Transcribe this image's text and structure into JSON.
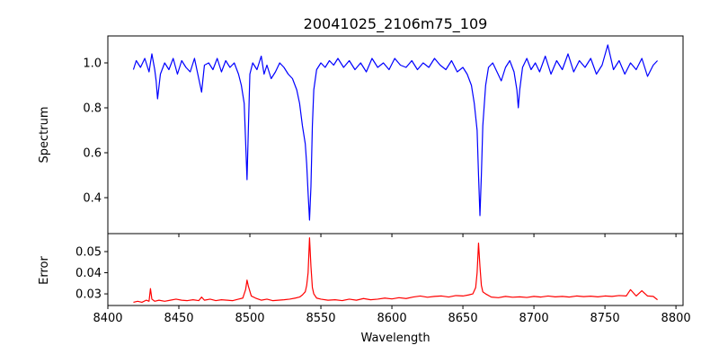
{
  "title": "20041025_2106m75_109",
  "chart_data": [
    {
      "type": "line",
      "panel": "spectrum",
      "ylabel": "Spectrum",
      "xlabel": "",
      "xlim": [
        8400,
        8805
      ],
      "ylim": [
        0.24,
        1.12
      ],
      "xticks": [
        8400,
        8450,
        8500,
        8550,
        8600,
        8650,
        8700,
        8750,
        8800
      ],
      "yticks": [
        0.4,
        0.6,
        0.8,
        1.0
      ],
      "ytick_labels": [
        "0.4",
        "0.6",
        "0.8",
        "1.0"
      ],
      "grid": false,
      "color": "#0000ff",
      "series": [
        {
          "x": [
            8418,
            8420,
            8423,
            8426,
            8429,
            8431,
            8433,
            8434,
            8435,
            8437,
            8440,
            8443,
            8446,
            8449,
            8452,
            8455,
            8458,
            8461,
            8464,
            8466,
            8468,
            8471,
            8474,
            8477,
            8480,
            8483,
            8486,
            8489,
            8492,
            8494,
            8496,
            8497,
            8498,
            8499,
            8500,
            8502,
            8505,
            8508,
            8510,
            8512,
            8515,
            8518,
            8521,
            8524,
            8527,
            8530,
            8533,
            8535,
            8537,
            8539,
            8540,
            8541,
            8542,
            8543,
            8544,
            8545,
            8547,
            8550,
            8553,
            8556,
            8559,
            8562,
            8566,
            8570,
            8574,
            8578,
            8582,
            8586,
            8590,
            8594,
            8598,
            8602,
            8606,
            8610,
            8614,
            8618,
            8622,
            8626,
            8630,
            8634,
            8638,
            8642,
            8646,
            8650,
            8653,
            8656,
            8658,
            8660,
            8661,
            8662,
            8663,
            8664,
            8666,
            8668,
            8671,
            8674,
            8677,
            8680,
            8683,
            8686,
            8688,
            8689,
            8690,
            8692,
            8695,
            8698,
            8701,
            8704,
            8708,
            8712,
            8716,
            8720,
            8724,
            8728,
            8732,
            8736,
            8740,
            8744,
            8748,
            8752,
            8756,
            8760,
            8764,
            8768,
            8772,
            8776,
            8780,
            8784,
            8787
          ],
          "y": [
            0.97,
            1.01,
            0.98,
            1.02,
            0.96,
            1.04,
            0.97,
            0.92,
            0.84,
            0.95,
            1.0,
            0.97,
            1.02,
            0.95,
            1.01,
            0.98,
            0.96,
            1.02,
            0.93,
            0.87,
            0.99,
            1.0,
            0.97,
            1.02,
            0.96,
            1.01,
            0.98,
            1.0,
            0.95,
            0.9,
            0.82,
            0.65,
            0.48,
            0.72,
            0.95,
            1.0,
            0.97,
            1.03,
            0.95,
            0.99,
            0.93,
            0.96,
            1.0,
            0.98,
            0.95,
            0.93,
            0.88,
            0.82,
            0.72,
            0.64,
            0.55,
            0.42,
            0.3,
            0.45,
            0.72,
            0.88,
            0.97,
            1.0,
            0.98,
            1.01,
            0.99,
            1.02,
            0.98,
            1.01,
            0.97,
            1.0,
            0.96,
            1.02,
            0.98,
            1.0,
            0.97,
            1.02,
            0.99,
            0.98,
            1.01,
            0.97,
            1.0,
            0.98,
            1.02,
            0.99,
            0.97,
            1.01,
            0.96,
            0.98,
            0.95,
            0.9,
            0.82,
            0.7,
            0.5,
            0.32,
            0.5,
            0.72,
            0.9,
            0.98,
            1.0,
            0.96,
            0.92,
            0.98,
            1.01,
            0.96,
            0.88,
            0.8,
            0.88,
            0.98,
            1.02,
            0.97,
            1.0,
            0.96,
            1.03,
            0.95,
            1.01,
            0.97,
            1.04,
            0.96,
            1.01,
            0.98,
            1.02,
            0.95,
            0.99,
            1.08,
            0.97,
            1.01,
            0.95,
            1.0,
            0.97,
            1.02,
            0.94,
            0.99,
            1.01
          ]
        }
      ]
    },
    {
      "type": "line",
      "panel": "error",
      "ylabel": "Error",
      "xlabel": "Wavelength",
      "xlim": [
        8400,
        8805
      ],
      "ylim": [
        0.0245,
        0.0585
      ],
      "xticks": [
        8400,
        8450,
        8500,
        8550,
        8600,
        8650,
        8700,
        8750,
        8800
      ],
      "xtick_labels": [
        "8400",
        "8450",
        "8500",
        "8550",
        "8600",
        "8650",
        "8700",
        "8750",
        "8800"
      ],
      "yticks": [
        0.03,
        0.04,
        0.05
      ],
      "ytick_labels": [
        "0.03",
        "0.04",
        "0.05"
      ],
      "grid": false,
      "color": "#ff0000",
      "series": [
        {
          "x": [
            8418,
            8421,
            8424,
            8427,
            8429,
            8430,
            8431,
            8433,
            8436,
            8440,
            8444,
            8448,
            8452,
            8456,
            8460,
            8464,
            8466,
            8468,
            8472,
            8476,
            8480,
            8484,
            8488,
            8492,
            8495,
            8497,
            8498,
            8499,
            8501,
            8504,
            8508,
            8512,
            8516,
            8520,
            8524,
            8528,
            8532,
            8535,
            8537,
            8539,
            8540,
            8541,
            8542,
            8543,
            8544,
            8545,
            8547,
            8550,
            8555,
            8560,
            8565,
            8570,
            8575,
            8580,
            8585,
            8590,
            8595,
            8600,
            8605,
            8610,
            8615,
            8620,
            8625,
            8630,
            8635,
            8640,
            8645,
            8650,
            8654,
            8657,
            8659,
            8660,
            8661,
            8662,
            8663,
            8664,
            8666,
            8670,
            8675,
            8680,
            8685,
            8690,
            8695,
            8700,
            8705,
            8710,
            8715,
            8720,
            8725,
            8730,
            8735,
            8740,
            8745,
            8750,
            8755,
            8760,
            8765,
            8768,
            8772,
            8776,
            8780,
            8784,
            8787
          ],
          "y": [
            0.026,
            0.0265,
            0.026,
            0.027,
            0.0265,
            0.0325,
            0.0275,
            0.0265,
            0.027,
            0.0265,
            0.027,
            0.0275,
            0.027,
            0.0268,
            0.0272,
            0.0268,
            0.0285,
            0.027,
            0.0275,
            0.0268,
            0.0272,
            0.027,
            0.0268,
            0.0275,
            0.028,
            0.032,
            0.0365,
            0.0335,
            0.029,
            0.028,
            0.027,
            0.0275,
            0.0268,
            0.027,
            0.0272,
            0.0275,
            0.028,
            0.0285,
            0.0295,
            0.031,
            0.034,
            0.04,
            0.0565,
            0.043,
            0.033,
            0.03,
            0.028,
            0.0275,
            0.027,
            0.0272,
            0.0268,
            0.0275,
            0.027,
            0.0278,
            0.0272,
            0.0275,
            0.028,
            0.0276,
            0.0282,
            0.0278,
            0.0285,
            0.029,
            0.0284,
            0.0288,
            0.029,
            0.0285,
            0.0292,
            0.029,
            0.0295,
            0.03,
            0.033,
            0.04,
            0.054,
            0.043,
            0.034,
            0.031,
            0.03,
            0.0285,
            0.0282,
            0.0288,
            0.0284,
            0.0286,
            0.0283,
            0.0288,
            0.0285,
            0.029,
            0.0286,
            0.0288,
            0.0285,
            0.029,
            0.0287,
            0.0289,
            0.0286,
            0.029,
            0.0288,
            0.0292,
            0.029,
            0.032,
            0.029,
            0.0315,
            0.029,
            0.0288,
            0.0272
          ]
        }
      ]
    }
  ]
}
